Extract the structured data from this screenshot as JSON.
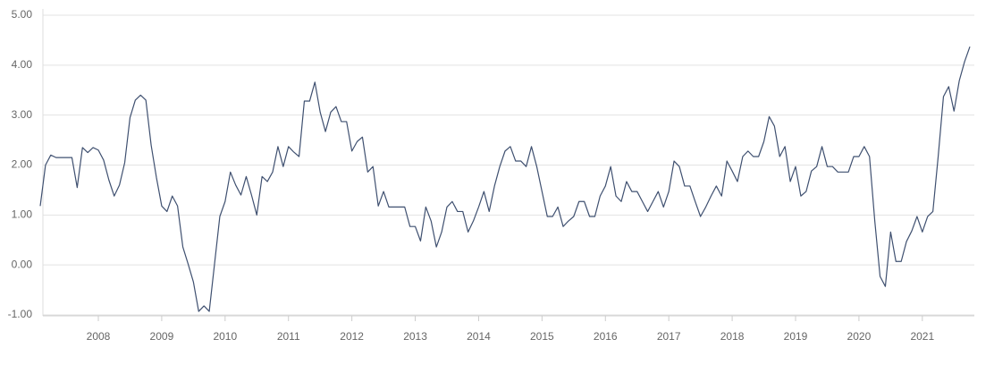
{
  "chart_data": {
    "type": "line",
    "categories": [
      null,
      null,
      null,
      null,
      null,
      null,
      null,
      null,
      null,
      null,
      null,
      "2008",
      null,
      null,
      null,
      null,
      null,
      null,
      null,
      null,
      null,
      null,
      null,
      "2009",
      null,
      null,
      null,
      null,
      null,
      null,
      null,
      null,
      null,
      null,
      null,
      "2010",
      null,
      null,
      null,
      null,
      null,
      null,
      null,
      null,
      null,
      null,
      null,
      "2011",
      null,
      null,
      null,
      null,
      null,
      null,
      null,
      null,
      null,
      null,
      null,
      "2012",
      null,
      null,
      null,
      null,
      null,
      null,
      null,
      null,
      null,
      null,
      null,
      "2013",
      null,
      null,
      null,
      null,
      null,
      null,
      null,
      null,
      null,
      null,
      null,
      "2014",
      null,
      null,
      null,
      null,
      null,
      null,
      null,
      null,
      null,
      null,
      null,
      "2015",
      null,
      null,
      null,
      null,
      null,
      null,
      null,
      null,
      null,
      null,
      null,
      "2016",
      null,
      null,
      null,
      null,
      null,
      null,
      null,
      null,
      null,
      null,
      null,
      "2017",
      null,
      null,
      null,
      null,
      null,
      null,
      null,
      null,
      null,
      null,
      null,
      "2018",
      null,
      null,
      null,
      null,
      null,
      null,
      null,
      null,
      null,
      null,
      null,
      "2019",
      null,
      null,
      null,
      null,
      null,
      null,
      null,
      null,
      null,
      null,
      null,
      "2020",
      null,
      null,
      null,
      null,
      null,
      null,
      null,
      null,
      null,
      null,
      null,
      "2021",
      null,
      null,
      null,
      null,
      null,
      null,
      null,
      null,
      null
    ],
    "values": [
      1.18,
      2.0,
      2.2,
      2.15,
      2.15,
      2.15,
      2.15,
      1.55,
      2.35,
      2.25,
      2.35,
      2.3,
      2.1,
      1.7,
      1.38,
      1.6,
      2.05,
      2.95,
      3.3,
      3.4,
      3.3,
      2.4,
      1.75,
      1.18,
      1.07,
      1.38,
      1.18,
      0.36,
      0.02,
      -0.34,
      -0.93,
      -0.82,
      -0.93,
      0.02,
      0.97,
      1.27,
      1.86,
      1.6,
      1.4,
      1.77,
      1.4,
      1.0,
      1.77,
      1.67,
      1.86,
      2.37,
      1.97,
      2.37,
      2.26,
      2.17,
      3.28,
      3.28,
      3.66,
      3.06,
      2.67,
      3.06,
      3.17,
      2.87,
      2.87,
      2.28,
      2.47,
      2.56,
      1.86,
      1.97,
      1.18,
      1.47,
      1.16,
      1.16,
      1.16,
      1.16,
      0.77,
      0.77,
      0.48,
      1.16,
      0.88,
      0.36,
      0.66,
      1.16,
      1.27,
      1.07,
      1.07,
      0.66,
      0.88,
      1.16,
      1.47,
      1.07,
      1.58,
      1.97,
      2.28,
      2.37,
      2.08,
      2.08,
      1.97,
      2.37,
      1.97,
      1.47,
      0.97,
      0.97,
      1.16,
      0.77,
      0.88,
      0.97,
      1.27,
      1.27,
      0.97,
      0.97,
      1.38,
      1.58,
      1.97,
      1.38,
      1.27,
      1.67,
      1.47,
      1.47,
      1.27,
      1.07,
      1.27,
      1.47,
      1.16,
      1.47,
      2.08,
      1.97,
      1.58,
      1.58,
      1.27,
      0.97,
      1.16,
      1.38,
      1.58,
      1.38,
      2.08,
      1.88,
      1.67,
      2.17,
      2.28,
      2.17,
      2.17,
      2.47,
      2.97,
      2.78,
      2.17,
      2.37,
      1.67,
      1.97,
      1.38,
      1.47,
      1.88,
      1.97,
      2.37,
      1.97,
      1.97,
      1.86,
      1.86,
      1.86,
      2.17,
      2.17,
      2.37,
      2.17,
      0.88,
      -0.23,
      -0.43,
      0.66,
      0.07,
      0.07,
      0.47,
      0.68,
      0.97,
      0.66,
      0.97,
      1.07,
      2.17,
      3.37,
      3.57,
      3.08,
      3.69,
      4.07,
      4.37
    ],
    "color": "#3f5070",
    "ylim": [
      -1,
      5
    ],
    "yticks": [
      {
        "value": 5,
        "label": "5.00"
      },
      {
        "value": 4,
        "label": "4.00"
      },
      {
        "value": 3,
        "label": "3.00"
      },
      {
        "value": 2,
        "label": "2.00"
      },
      {
        "value": 1,
        "label": "1.00"
      },
      {
        "value": 0,
        "label": "0.00"
      },
      {
        "value": -1,
        "label": "-1.00"
      }
    ],
    "grid": true
  }
}
